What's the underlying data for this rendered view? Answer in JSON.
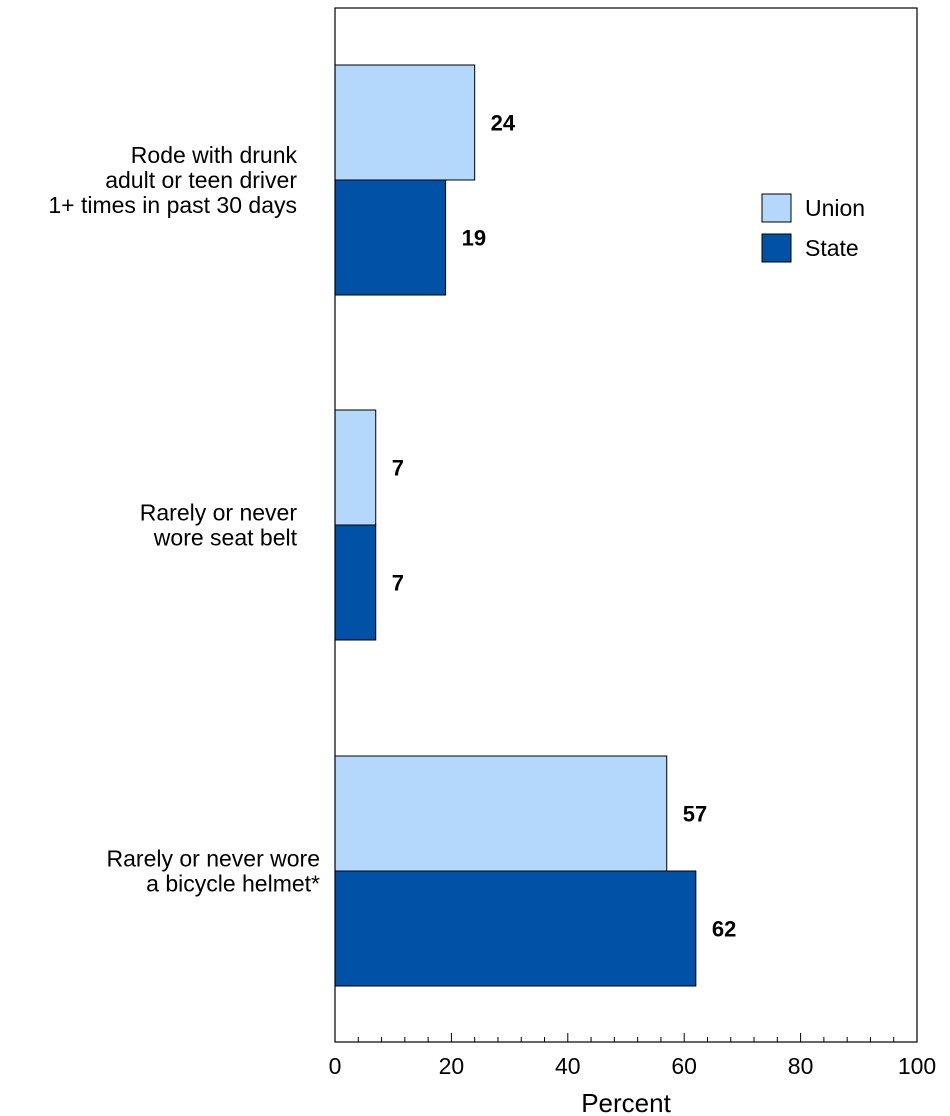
{
  "chart_data": {
    "type": "bar",
    "orientation": "horizontal",
    "categories": [
      [
        "Rode with drunk",
        "adult or teen driver",
        "1+ times in past 30 days"
      ],
      [
        "Rarely or never",
        "wore seat belt"
      ],
      [
        "Rarely or never wore",
        "a bicycle helmet*"
      ]
    ],
    "series": [
      {
        "name": "Union",
        "color": "#b3d8fc",
        "values": [
          24,
          7,
          57
        ]
      },
      {
        "name": "State",
        "color": "#0152a6",
        "values": [
          19,
          7,
          62
        ]
      }
    ],
    "xlabel": "Percent",
    "xlim": [
      0,
      100
    ],
    "xticks": [
      0,
      20,
      40,
      60,
      80,
      100
    ],
    "grid": false,
    "legend_position": "top-right"
  }
}
